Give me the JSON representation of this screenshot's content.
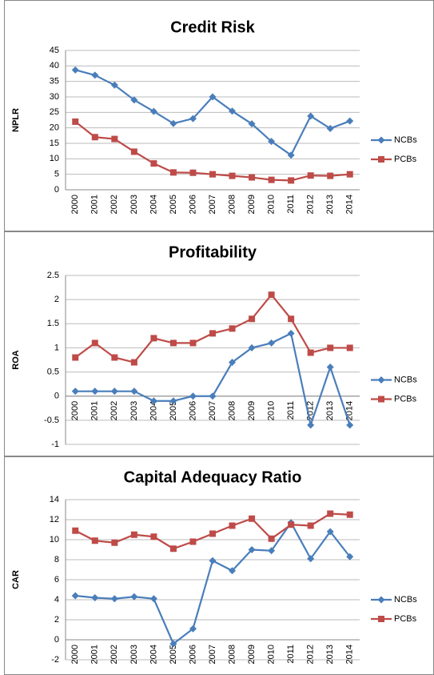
{
  "chart_data": [
    {
      "type": "line",
      "title": "Credit Risk",
      "y_label": "NPLR",
      "categories": [
        "2000",
        "2001",
        "2002",
        "2003",
        "2004",
        "2005",
        "2006",
        "2007",
        "2008",
        "2009",
        "2010",
        "2011",
        "2012",
        "2013",
        "2014"
      ],
      "series": [
        {
          "name": "NCBs",
          "color": "#4a7ebb",
          "values": [
            38.7,
            37,
            33.8,
            29,
            25.3,
            21.4,
            23,
            30,
            25.4,
            21.3,
            15.6,
            11.2,
            23.8,
            19.8,
            22.2
          ]
        },
        {
          "name": "PCBs",
          "color": "#be4b48",
          "values": [
            22,
            17,
            16.4,
            12.3,
            8.5,
            5.6,
            5.5,
            5,
            4.5,
            4,
            3.2,
            3,
            4.6,
            4.5,
            5
          ]
        }
      ],
      "ylim": [
        0,
        45
      ],
      "yticks": [
        0,
        5,
        10,
        15,
        20,
        25,
        30,
        35,
        40,
        45
      ],
      "grid": true,
      "legend": "right"
    },
    {
      "type": "line",
      "title": "Profitability",
      "y_label": "ROA",
      "categories": [
        "2000",
        "2001",
        "2002",
        "2003",
        "2004",
        "2005",
        "2006",
        "2007",
        "2008",
        "2009",
        "2010",
        "2011",
        "2012",
        "2013",
        "2014"
      ],
      "series": [
        {
          "name": "NCBs",
          "color": "#4a7ebb",
          "values": [
            0.1,
            0.1,
            0.1,
            0.1,
            -0.1,
            -0.1,
            0,
            0,
            0.7,
            1,
            1.1,
            1.3,
            -0.6,
            0.6,
            -0.6
          ]
        },
        {
          "name": "PCBs",
          "color": "#be4b48",
          "values": [
            0.8,
            1.1,
            0.8,
            0.7,
            1.2,
            1.1,
            1.1,
            1.3,
            1.4,
            1.6,
            2.1,
            1.6,
            0.9,
            1,
            1
          ]
        }
      ],
      "ylim": [
        -1,
        2.5
      ],
      "yticks": [
        -1,
        -0.5,
        0,
        0.5,
        1,
        1.5,
        2,
        2.5
      ],
      "grid": true,
      "legend": "right"
    },
    {
      "type": "line",
      "title": "Capital Adequacy Ratio",
      "y_label": "CAR",
      "categories": [
        "2000",
        "2001",
        "2002",
        "2003",
        "2004",
        "2005",
        "2006",
        "2007",
        "2008",
        "2009",
        "2010",
        "2011",
        "2012",
        "2013",
        "2014"
      ],
      "series": [
        {
          "name": "NCBs",
          "color": "#4a7ebb",
          "values": [
            4.4,
            4.2,
            4.1,
            4.3,
            4.1,
            -0.4,
            1.1,
            7.9,
            6.9,
            9,
            8.9,
            11.7,
            8.1,
            10.8,
            8.3
          ]
        },
        {
          "name": "PCBs",
          "color": "#be4b48",
          "values": [
            10.9,
            9.9,
            9.7,
            10.5,
            10.3,
            9.1,
            9.8,
            10.6,
            11.4,
            12.1,
            10.1,
            11.5,
            11.4,
            12.6,
            12.5
          ]
        }
      ],
      "ylim": [
        -2,
        14
      ],
      "yticks": [
        -2,
        0,
        2,
        4,
        6,
        8,
        10,
        12,
        14
      ],
      "grid": true,
      "legend": "right"
    }
  ]
}
